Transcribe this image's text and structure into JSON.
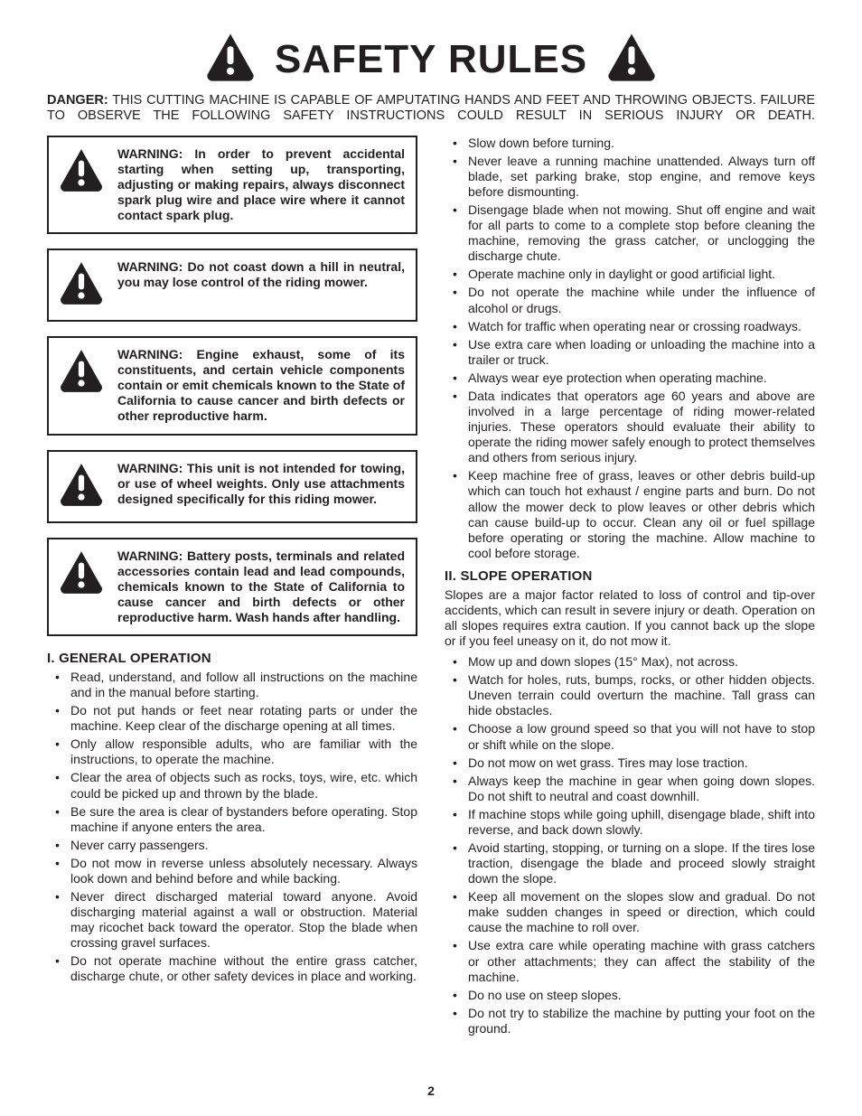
{
  "colors": {
    "text": "#231f20",
    "bg": "#ffffff",
    "border": "#231f20"
  },
  "typography": {
    "body_fontsize": 14,
    "title_fontsize": 44,
    "section_fontsize": 15,
    "font_family": "Arial, Helvetica, sans-serif"
  },
  "icons": {
    "triangle_fill": "#231f20",
    "bang_fill": "#ffffff",
    "header_tri_size": 58,
    "box_tri_size": 52
  },
  "header": {
    "title": "SAFETY RULES"
  },
  "danger": {
    "label": "DANGER:",
    "text": " THIS CUTTING MACHINE IS CAPABLE OF AMPUTATING HANDS AND FEET AND THROWING OBJECTS. FAILURE TO OBSERVE THE FOLLOWING SAFETY INSTRUCTIONS COULD RESULT IN SERIOUS INJURY OR DEATH."
  },
  "warnings": [
    "WARNING: In order to prevent accidental starting when setting up, transporting, adjusting or making repairs, always disconnect spark plug wire and place wire where it cannot contact spark plug.",
    "WARNING: Do not coast down a hill in neutral, you may lose control of the riding mower.",
    "WARNING: Engine exhaust, some of its constituents, and certain vehicle components contain or emit chemicals known to the State of California to cause cancer and birth defects or other reproductive harm.",
    "WARNING: This unit is not intended for towing, or use of wheel weights. Only use attachments designed specifically for this riding mower.",
    "WARNING: Battery posts, terminals and related accessories contain lead and lead compounds, chemicals known to the State of California to cause cancer and birth defects or other reproductive harm. Wash hands after handling."
  ],
  "section1": {
    "heading": "I. GENERAL OPERATION",
    "items_left": [
      "Read, understand, and follow all instructions on the machine and in the manual before starting.",
      "Do not put hands or feet near rotating parts or under the machine. Keep clear of the discharge opening at all times.",
      "Only allow responsible adults, who are familiar with the instructions, to operate the machine.",
      "Clear the area of objects such as rocks, toys, wire, etc. which could be picked up and thrown by the blade.",
      "Be sure the area is clear of bystanders before operating. Stop machine if anyone enters the area.",
      "Never carry passengers.",
      "Do not mow in reverse unless absolutely necessary. Always look down and behind before and while backing.",
      "Never direct discharged material toward anyone. Avoid discharging material against a wall or obstruction. Material may ricochet back toward the operator. Stop the blade when crossing gravel surfaces.",
      "Do not operate machine without the entire grass catcher, discharge chute, or other safety devices in place and working."
    ],
    "items_right": [
      "Slow down before turning.",
      "Never leave a running machine unattended. Always turn off blade, set parking brake, stop engine, and remove keys before dismounting.",
      "Disengage blade when not mowing. Shut off engine and wait for all parts to come to a complete stop before cleaning the machine, removing the grass catcher, or unclogging the discharge chute.",
      "Operate machine only in daylight or good artificial light.",
      "Do not operate the machine while under the influence of alcohol or drugs.",
      "Watch for traffic when operating near or crossing roadways.",
      "Use extra care when loading or unloading the machine into a trailer or truck.",
      "Always wear eye protection when operating machine.",
      "Data indicates that operators age 60 years and above are involved in a large percentage of riding mower-related injuries. These operators should evaluate their ability to operate the riding mower safely enough to protect themselves and others from serious injury.",
      "Keep machine free of grass, leaves or other debris build-up which can touch hot exhaust / engine parts and burn. Do not allow the mower deck to plow leaves or other debris which can cause build-up to occur. Clean any oil or fuel spillage before operating or storing the machine. Allow machine to cool before storage."
    ]
  },
  "section2": {
    "heading": "II. SLOPE OPERATION",
    "intro": "Slopes are a major factor related to loss of control and tip-over accidents, which can result in severe injury or death. Operation on all slopes requires extra caution. If you cannot back up the slope or if you feel uneasy on it, do not mow it.",
    "items": [
      "Mow up and down slopes (15° Max), not across.",
      "Watch for holes, ruts, bumps, rocks, or other hidden objects. Uneven terrain could overturn the machine. Tall grass can hide obstacles.",
      "Choose a low ground speed so that you will not have to stop or shift while on the slope.",
      "Do not mow on wet grass. Tires may lose traction.",
      "Always keep the machine in gear when going down slopes. Do not shift to neutral and coast downhill.",
      "If machine stops while going uphill, disengage blade, shift into reverse, and back down slowly.",
      "Avoid starting, stopping, or turning on a slope. If the tires lose traction, disengage the blade and proceed slowly straight down the slope.",
      "Keep all movement on the slopes slow and gradual. Do not make sudden changes in speed or direction, which could cause the machine to roll over.",
      "Use extra care while operating machine with grass catchers or other attachments; they can affect the stability of the machine.",
      "Do no use on steep slopes.",
      "Do not try to stabilize the machine by putting your foot on the ground."
    ]
  },
  "page_number": "2"
}
